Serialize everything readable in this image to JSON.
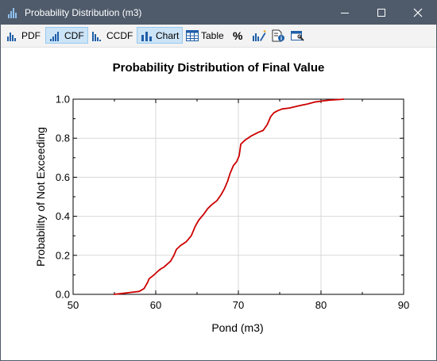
{
  "window": {
    "title": "Probability Distribution (m3)"
  },
  "toolbar": {
    "pdf_label": "PDF",
    "cdf_label": "CDF",
    "ccdf_label": "CCDF",
    "chart_label": "Chart",
    "table_label": "Table",
    "percent_label": "%"
  },
  "colors": {
    "titlebar": "#4f5b6b",
    "accent_blue": "#1f5fa8",
    "active_button": "#cce4f7",
    "series": "#cc0000"
  },
  "chart_data": {
    "type": "line",
    "title": "Probability Distribution of Final Value",
    "xlabel": "Pond (m3)",
    "ylabel": "Probability of Not Exceeding",
    "xlim": [
      50,
      90
    ],
    "ylim": [
      0,
      1
    ],
    "x_ticks": [
      "50",
      "60",
      "70",
      "80",
      "90"
    ],
    "y_ticks": [
      "0.0",
      "0.2",
      "0.4",
      "0.6",
      "0.8",
      "1.0"
    ],
    "grid": true,
    "series": [
      {
        "x": [
          54.9,
          56.0,
          57.0,
          58.0,
          58.6,
          59.0,
          59.2,
          59.8,
          60.3,
          60.6,
          61.0,
          61.8,
          62.2,
          62.5,
          63.0,
          63.7,
          64.3,
          64.8,
          65.2,
          65.8,
          66.3,
          66.8,
          67.4,
          67.9,
          68.3,
          68.7,
          69.0,
          69.4,
          69.8,
          70.1,
          70.3,
          70.8,
          71.5,
          72.4,
          73.0,
          73.5,
          73.9,
          74.3,
          74.7,
          75.3,
          76.2,
          77.2,
          78.3,
          79.2,
          80.0,
          81.0,
          82.1,
          82.8
        ],
        "y": [
          0.0,
          0.005,
          0.01,
          0.015,
          0.03,
          0.06,
          0.08,
          0.1,
          0.12,
          0.13,
          0.14,
          0.17,
          0.2,
          0.23,
          0.25,
          0.27,
          0.3,
          0.35,
          0.38,
          0.41,
          0.44,
          0.46,
          0.48,
          0.51,
          0.54,
          0.58,
          0.62,
          0.66,
          0.68,
          0.71,
          0.77,
          0.79,
          0.81,
          0.83,
          0.84,
          0.87,
          0.91,
          0.93,
          0.94,
          0.95,
          0.955,
          0.965,
          0.975,
          0.985,
          0.99,
          0.995,
          0.998,
          1.0
        ]
      }
    ]
  }
}
